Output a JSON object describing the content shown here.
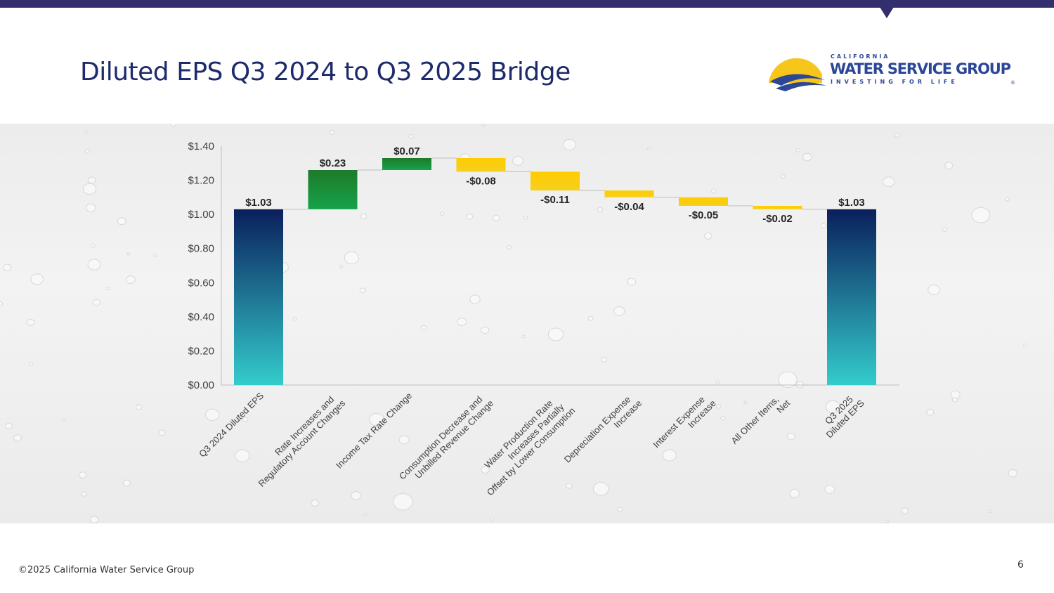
{
  "slide": {
    "title": "Diluted EPS Q3 2024 to Q3 2025 Bridge",
    "footer": "©2025 California Water Service Group",
    "page_number": "6",
    "colors": {
      "top_bar": "#332e6e",
      "title": "#1d2a6b"
    }
  },
  "logo": {
    "line1": "CALIFORNIA",
    "line2": "WATER SERVICE GROUP",
    "line3": "INVESTING FOR LIFE",
    "mark": "®"
  },
  "chart_data": {
    "type": "waterfall",
    "categories": [
      "Q3 2024 Diluted EPS",
      "Rate Increases and\nRegulatory Account Changes",
      "Income Tax Rate Change",
      "Consumption Decrease and\nUnbilled Revenue Change",
      "Water Production Rate\nIncreases Partially\nOffset by Lower Consumption",
      "Depreciation Expense\nIncrease",
      "Interest Expense\nIncrease",
      "All Other Items,\nNet",
      "Q3 2025\nDiluted EPS"
    ],
    "values": [
      1.03,
      0.23,
      0.07,
      -0.08,
      -0.11,
      -0.04,
      -0.05,
      -0.02,
      1.03
    ],
    "kinds": [
      "total",
      "increase",
      "increase",
      "decrease",
      "decrease",
      "decrease",
      "decrease",
      "decrease",
      "total"
    ],
    "data_labels": [
      "$1.03",
      "$0.23",
      "$0.07",
      "-$0.08",
      "-$0.11",
      "-$0.04",
      "-$0.05",
      "-$0.02",
      "$1.03"
    ],
    "ylim": [
      0,
      1.4
    ],
    "yticks": [
      "$0.00",
      "$0.20",
      "$0.40",
      "$0.60",
      "$0.80",
      "$1.00",
      "$1.20",
      "$1.40"
    ],
    "ytick_values": [
      0,
      0.2,
      0.4,
      0.6,
      0.8,
      1.0,
      1.2,
      1.4
    ],
    "grid": false,
    "colors": {
      "total_top": "#0a1f5c",
      "total_bottom": "#33cccc",
      "increase_top": "#1e7a2a",
      "increase_bottom": "#16a34a",
      "decrease": "#ffcc00"
    }
  }
}
